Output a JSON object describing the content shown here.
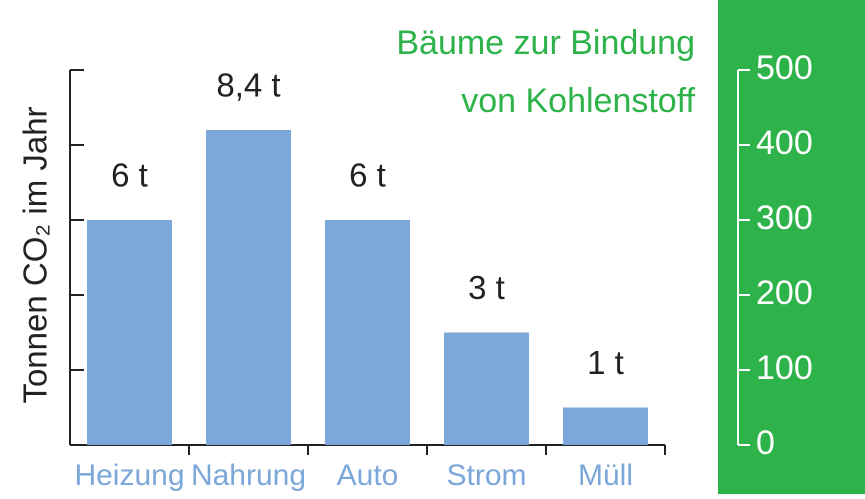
{
  "chart_data": {
    "type": "bar",
    "y_label": "Tonnen CO₂ im Jahr",
    "annotation": [
      "Bäume zur Bindung",
      "von Kohlenstoff"
    ],
    "categories": [
      "Heizung",
      "Nahrung",
      "Auto",
      "Strom",
      "Müll"
    ],
    "values": [
      6,
      8.4,
      6,
      3,
      1
    ],
    "value_labels": [
      "6 t",
      "8,4 t",
      "6 t",
      "3 t",
      "1 t"
    ],
    "color": "#7ba7d9",
    "category_color": "#7ba7d9",
    "annotation_color": "#2db34a",
    "ylim": [
      0,
      10
    ],
    "yticks": [
      0,
      2,
      4,
      6,
      8,
      10
    ],
    "y2lim": [
      0,
      500
    ],
    "y2ticks": [
      0,
      100,
      200,
      300,
      400,
      500
    ],
    "y2_panel_color": "#2db34a"
  }
}
